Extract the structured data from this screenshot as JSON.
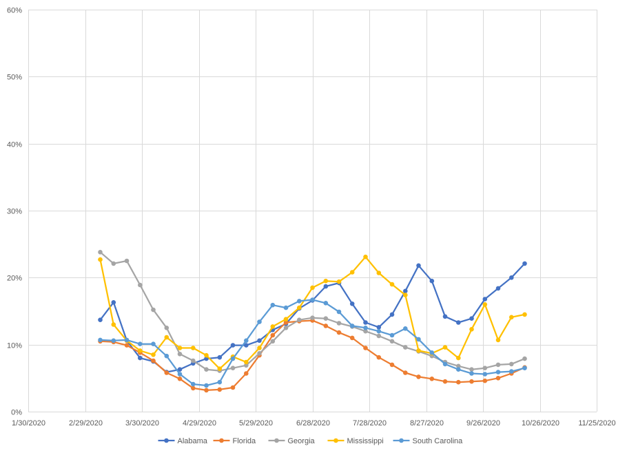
{
  "chart_data": {
    "type": "line",
    "title": "",
    "xlabel": "",
    "ylabel": "",
    "xlim": [
      "2020-01-30",
      "2020-11-25"
    ],
    "ylim": [
      0,
      0.6
    ],
    "x_tick_labels": [
      "1/30/2020",
      "2/29/2020",
      "3/30/2020",
      "4/29/2020",
      "5/29/2020",
      "6/28/2020",
      "7/28/2020",
      "8/27/2020",
      "9/26/2020",
      "10/26/2020",
      "11/25/2020"
    ],
    "y_tick_labels": [
      "0%",
      "10%",
      "20%",
      "30%",
      "40%",
      "50%",
      "60%"
    ],
    "y_ticks": [
      0,
      0.1,
      0.2,
      0.3,
      0.4,
      0.5,
      0.6
    ],
    "grid": true,
    "legend_position": "bottom",
    "x": [
      "2020-03-08",
      "2020-03-15",
      "2020-03-22",
      "2020-03-29",
      "2020-04-05",
      "2020-04-12",
      "2020-04-19",
      "2020-04-26",
      "2020-05-03",
      "2020-05-10",
      "2020-05-17",
      "2020-05-24",
      "2020-05-31",
      "2020-06-07",
      "2020-06-14",
      "2020-06-21",
      "2020-06-28",
      "2020-07-05",
      "2020-07-12",
      "2020-07-19",
      "2020-07-26",
      "2020-08-02",
      "2020-08-09",
      "2020-08-16",
      "2020-08-23",
      "2020-08-30",
      "2020-09-06",
      "2020-09-13",
      "2020-09-20",
      "2020-09-27",
      "2020-10-04",
      "2020-10-11",
      "2020-10-18"
    ],
    "series": [
      {
        "name": "Alabama",
        "color": "#4472c4",
        "values": [
          0.137,
          0.163,
          0.106,
          0.08,
          0.075,
          0.059,
          0.063,
          0.072,
          0.079,
          0.081,
          0.099,
          0.099,
          0.106,
          0.122,
          0.131,
          0.154,
          0.166,
          0.187,
          0.192,
          0.161,
          0.133,
          0.126,
          0.145,
          0.18,
          0.218,
          0.195,
          0.142,
          0.133,
          0.139,
          0.168,
          0.184,
          0.2,
          0.221
        ]
      },
      {
        "name": "Florida",
        "color": "#ed7d31",
        "values": [
          0.105,
          0.104,
          0.099,
          0.088,
          0.076,
          0.058,
          0.049,
          0.035,
          0.032,
          0.033,
          0.036,
          0.057,
          0.084,
          0.114,
          0.133,
          0.135,
          0.136,
          0.128,
          0.118,
          0.11,
          0.095,
          0.081,
          0.07,
          0.058,
          0.052,
          0.049,
          0.045,
          0.044,
          0.045,
          0.046,
          0.05,
          0.057,
          0.066
        ]
      },
      {
        "name": "Georgia",
        "color": "#a5a5a5",
        "values": [
          0.238,
          0.221,
          0.225,
          0.189,
          0.152,
          0.125,
          0.086,
          0.076,
          0.063,
          0.061,
          0.065,
          0.069,
          0.087,
          0.105,
          0.125,
          0.137,
          0.14,
          0.139,
          0.132,
          0.127,
          0.12,
          0.113,
          0.105,
          0.096,
          0.09,
          0.083,
          0.074,
          0.068,
          0.063,
          0.065,
          0.07,
          0.071,
          0.079
        ]
      },
      {
        "name": "Mississippi",
        "color": "#ffc000",
        "values": [
          0.227,
          0.13,
          0.106,
          0.091,
          0.085,
          0.111,
          0.095,
          0.095,
          0.084,
          0.064,
          0.082,
          0.074,
          0.095,
          0.127,
          0.138,
          0.155,
          0.185,
          0.195,
          0.194,
          0.208,
          0.231,
          0.207,
          0.19,
          0.174,
          0.091,
          0.087,
          0.096,
          0.08,
          0.123,
          0.16,
          0.107,
          0.141,
          0.145
        ]
      },
      {
        "name": "South Carolina",
        "color": "#5b9bd5",
        "values": [
          0.107,
          0.106,
          0.107,
          0.101,
          0.101,
          0.083,
          0.056,
          0.041,
          0.039,
          0.044,
          0.079,
          0.106,
          0.134,
          0.159,
          0.155,
          0.165,
          0.167,
          0.162,
          0.149,
          0.128,
          0.125,
          0.12,
          0.114,
          0.124,
          0.108,
          0.088,
          0.071,
          0.063,
          0.057,
          0.056,
          0.059,
          0.06,
          0.065
        ]
      }
    ]
  }
}
